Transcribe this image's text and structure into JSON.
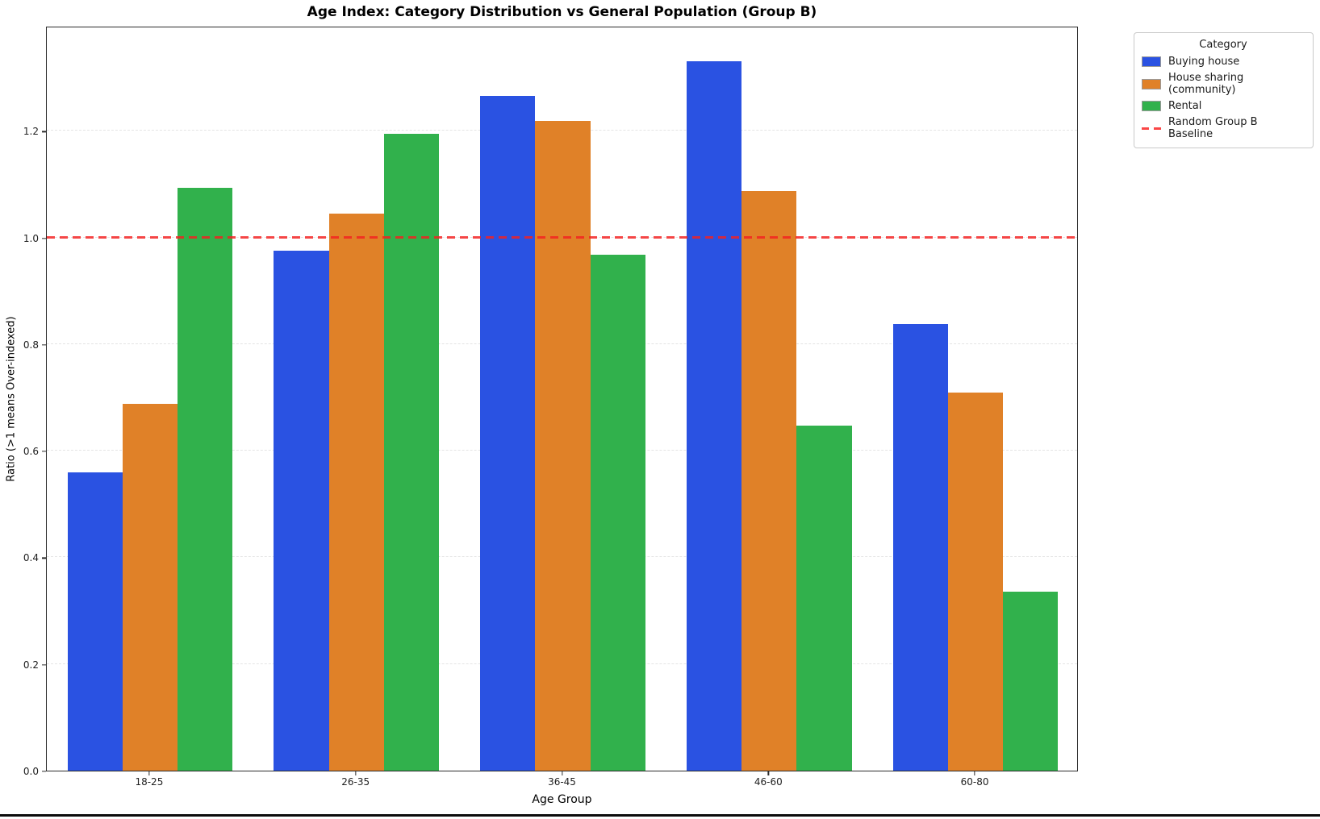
{
  "figure": {
    "title": "Age Index: Category Distribution vs General Population (Group B)",
    "xlabel": "Age Group",
    "ylabel": "Ratio (>1 means Over-indexed)"
  },
  "legend": {
    "title": "Category",
    "entries": [
      {
        "label": "Buying house",
        "color": "#2a52e2",
        "kind": "patch"
      },
      {
        "label": "House sharing (community)",
        "color": "#e08128",
        "kind": "patch"
      },
      {
        "label": "Rental",
        "color": "#31b14c",
        "kind": "patch"
      },
      {
        "label": "Random Group B Baseline",
        "color": "#fa3c3c",
        "kind": "dashed-line"
      }
    ]
  },
  "chart_data": {
    "type": "bar",
    "title": "Age Index: Category Distribution vs General Population (Group B)",
    "xlabel": "Age Group",
    "ylabel": "Ratio (>1 means Over-indexed)",
    "categories": [
      "18-25",
      "26-35",
      "36-45",
      "46-60",
      "60-80"
    ],
    "series": [
      {
        "name": "Buying house",
        "color": "#2a52e2",
        "values": [
          0.56,
          0.975,
          1.265,
          1.33,
          0.837
        ]
      },
      {
        "name": "House sharing (community)",
        "color": "#e08128",
        "values": [
          0.688,
          1.044,
          1.218,
          1.087,
          0.709
        ]
      },
      {
        "name": "Rental",
        "color": "#31b14c",
        "values": [
          1.093,
          1.195,
          0.968,
          0.647,
          0.336
        ]
      }
    ],
    "baseline": {
      "label": "Random Group B Baseline",
      "value": 1.0,
      "color": "#f42020",
      "style": "dashed"
    },
    "ylim": [
      0,
      1.397
    ],
    "yticks": [
      0.0,
      0.2,
      0.4,
      0.6,
      0.8,
      1.0,
      1.2
    ],
    "ytick_labels": [
      "0.0",
      "0.2",
      "0.4",
      "0.6",
      "0.8",
      "1.0",
      "1.2"
    ],
    "grid": true,
    "grid_style": "dashed",
    "legend_position": "outside-right",
    "bar_group_fraction": 0.8
  }
}
